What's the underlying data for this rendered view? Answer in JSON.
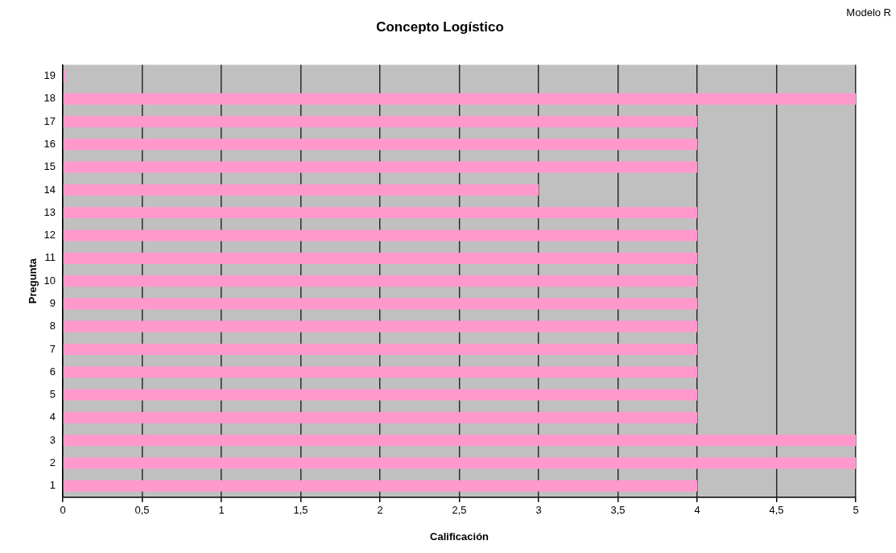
{
  "chart_data": {
    "type": "bar",
    "orientation": "horizontal",
    "title": "Concepto Logístico",
    "xlabel": "Calificación",
    "ylabel": "Pregunta",
    "categories": [
      "19",
      "18",
      "17",
      "16",
      "15",
      "14",
      "13",
      "12",
      "11",
      "10",
      "9",
      "8",
      "7",
      "6",
      "5",
      "4",
      "3",
      "2",
      "1"
    ],
    "values": [
      0,
      5,
      4,
      4,
      4,
      3,
      4,
      4,
      4,
      4,
      4,
      4,
      4,
      4,
      4,
      4,
      5,
      5,
      4
    ],
    "color": "#ff99cc",
    "xlim": [
      0,
      5
    ],
    "xticks": [
      0,
      {
        "value": 0.5,
        "label": "0,5"
      },
      1,
      {
        "value": 1.5,
        "label": "1,5"
      },
      2,
      {
        "value": 2.5,
        "label": "2,5"
      },
      3,
      {
        "value": 3.5,
        "label": "3,5"
      },
      4,
      {
        "value": 4.5,
        "label": "4,5"
      },
      5
    ],
    "grid": "x",
    "annotations": [
      "Modelo R"
    ]
  }
}
